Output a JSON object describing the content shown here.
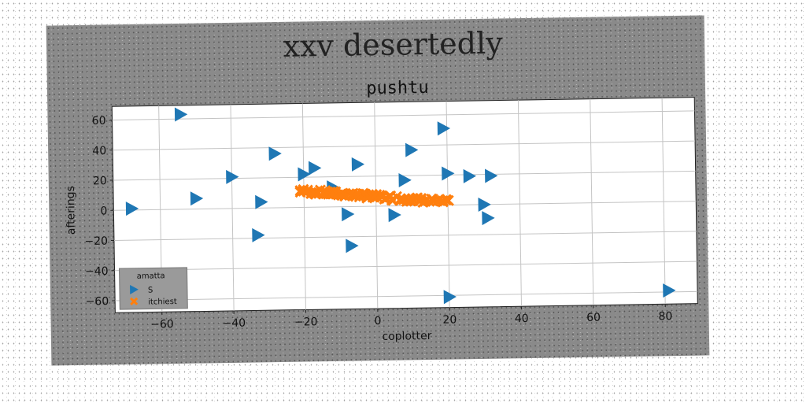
{
  "chart_data": {
    "type": "scatter",
    "suptitle": "xxv desertedly",
    "title": "pushtu",
    "xlabel": "coplotter",
    "ylabel": "afterings",
    "xlim": [
      -73,
      89
    ],
    "ylim": [
      -68,
      69
    ],
    "xticks": [
      -60,
      -40,
      -20,
      0,
      20,
      40,
      60,
      80
    ],
    "yticks": [
      -60,
      -40,
      -20,
      0,
      20,
      40,
      60
    ],
    "grid": true,
    "legend": {
      "title": "amatta",
      "position": "lower-left"
    },
    "series": [
      {
        "name": "S",
        "marker": "triangle-right",
        "color": "#1f77b4",
        "points": [
          [
            -54,
            63
          ],
          [
            -68,
            1
          ],
          [
            -50,
            7
          ],
          [
            -40,
            21
          ],
          [
            -28,
            36
          ],
          [
            -32,
            4
          ],
          [
            -33,
            -18
          ],
          [
            -20,
            22
          ],
          [
            -17,
            26
          ],
          [
            -12,
            13
          ],
          [
            -8,
            -5
          ],
          [
            -5,
            28
          ],
          [
            -7,
            -26
          ],
          [
            5,
            -6
          ],
          [
            8,
            17
          ],
          [
            10,
            37
          ],
          [
            19,
            51
          ],
          [
            20,
            21
          ],
          [
            26,
            19
          ],
          [
            32,
            19
          ],
          [
            30,
            0
          ],
          [
            31,
            -9
          ],
          [
            20,
            -61
          ],
          [
            81,
            -59
          ]
        ]
      },
      {
        "name": "itchiest",
        "marker": "x",
        "color": "#ff7f0e",
        "line": {
          "x0": -21,
          "y0": 11,
          "x1": 20,
          "y1": 2,
          "count": 90,
          "spread": 3
        }
      }
    ]
  }
}
